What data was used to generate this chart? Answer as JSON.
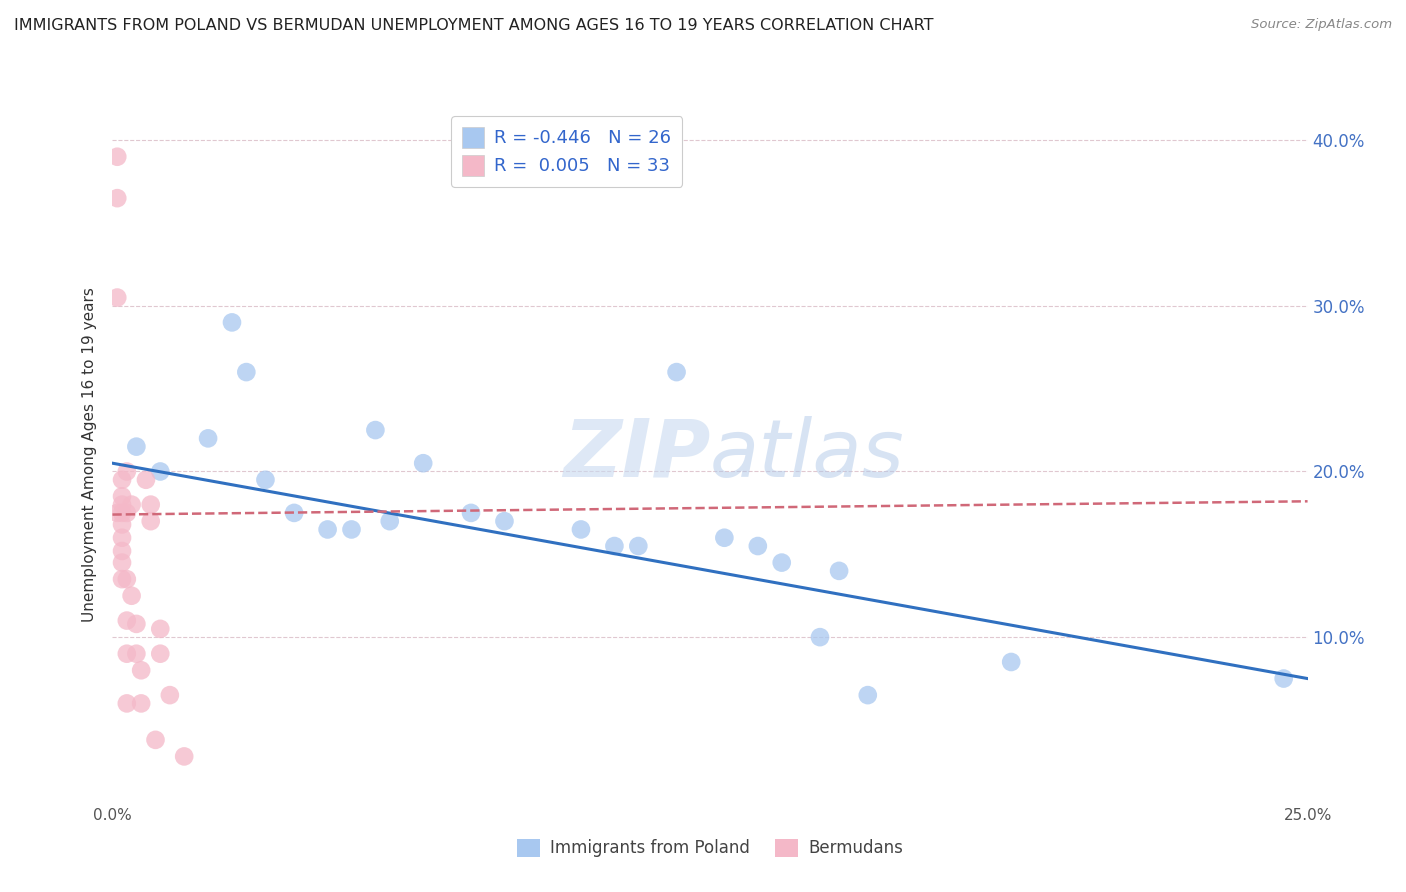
{
  "title": "IMMIGRANTS FROM POLAND VS BERMUDAN UNEMPLOYMENT AMONG AGES 16 TO 19 YEARS CORRELATION CHART",
  "source": "Source: ZipAtlas.com",
  "ylabel": "Unemployment Among Ages 16 to 19 years",
  "xlabel_blue": "Immigrants from Poland",
  "xlabel_pink": "Bermudans",
  "xlim": [
    0,
    0.25
  ],
  "ylim": [
    0,
    0.42
  ],
  "x_ticks": [
    0.0,
    0.05,
    0.1,
    0.15,
    0.2,
    0.25
  ],
  "y_ticks": [
    0.0,
    0.1,
    0.2,
    0.3,
    0.4
  ],
  "legend_r_blue": "-0.446",
  "legend_n_blue": "26",
  "legend_r_pink": "0.005",
  "legend_n_pink": "33",
  "blue_color": "#a8c8f0",
  "pink_color": "#f4b8c8",
  "blue_line_color": "#3070c0",
  "pink_line_color": "#d06878",
  "watermark_zip": "ZIP",
  "watermark_atlas": "atlas",
  "blue_points_x": [
    0.005,
    0.01,
    0.02,
    0.025,
    0.028,
    0.032,
    0.038,
    0.045,
    0.05,
    0.055,
    0.058,
    0.065,
    0.075,
    0.082,
    0.098,
    0.105,
    0.11,
    0.118,
    0.128,
    0.135,
    0.14,
    0.148,
    0.152,
    0.158,
    0.188,
    0.245
  ],
  "blue_points_y": [
    0.215,
    0.2,
    0.22,
    0.29,
    0.26,
    0.195,
    0.175,
    0.165,
    0.165,
    0.225,
    0.17,
    0.205,
    0.175,
    0.17,
    0.165,
    0.155,
    0.155,
    0.26,
    0.16,
    0.155,
    0.145,
    0.1,
    0.14,
    0.065,
    0.085,
    0.075
  ],
  "pink_points_x": [
    0.001,
    0.001,
    0.001,
    0.001,
    0.002,
    0.002,
    0.002,
    0.002,
    0.002,
    0.002,
    0.002,
    0.002,
    0.002,
    0.003,
    0.003,
    0.003,
    0.003,
    0.003,
    0.003,
    0.004,
    0.004,
    0.005,
    0.005,
    0.006,
    0.006,
    0.007,
    0.008,
    0.008,
    0.009,
    0.01,
    0.01,
    0.012,
    0.015
  ],
  "pink_points_y": [
    0.39,
    0.365,
    0.305,
    0.175,
    0.195,
    0.185,
    0.18,
    0.175,
    0.168,
    0.16,
    0.152,
    0.145,
    0.135,
    0.2,
    0.175,
    0.135,
    0.11,
    0.09,
    0.06,
    0.18,
    0.125,
    0.108,
    0.09,
    0.08,
    0.06,
    0.195,
    0.18,
    0.17,
    0.038,
    0.105,
    0.09,
    0.065,
    0.028
  ],
  "blue_trendline_x": [
    0.0,
    0.25
  ],
  "blue_trendline_y": [
    0.205,
    0.075
  ],
  "pink_trendline_x": [
    0.0,
    0.15
  ],
  "pink_trendline_y": [
    0.175,
    0.18
  ]
}
